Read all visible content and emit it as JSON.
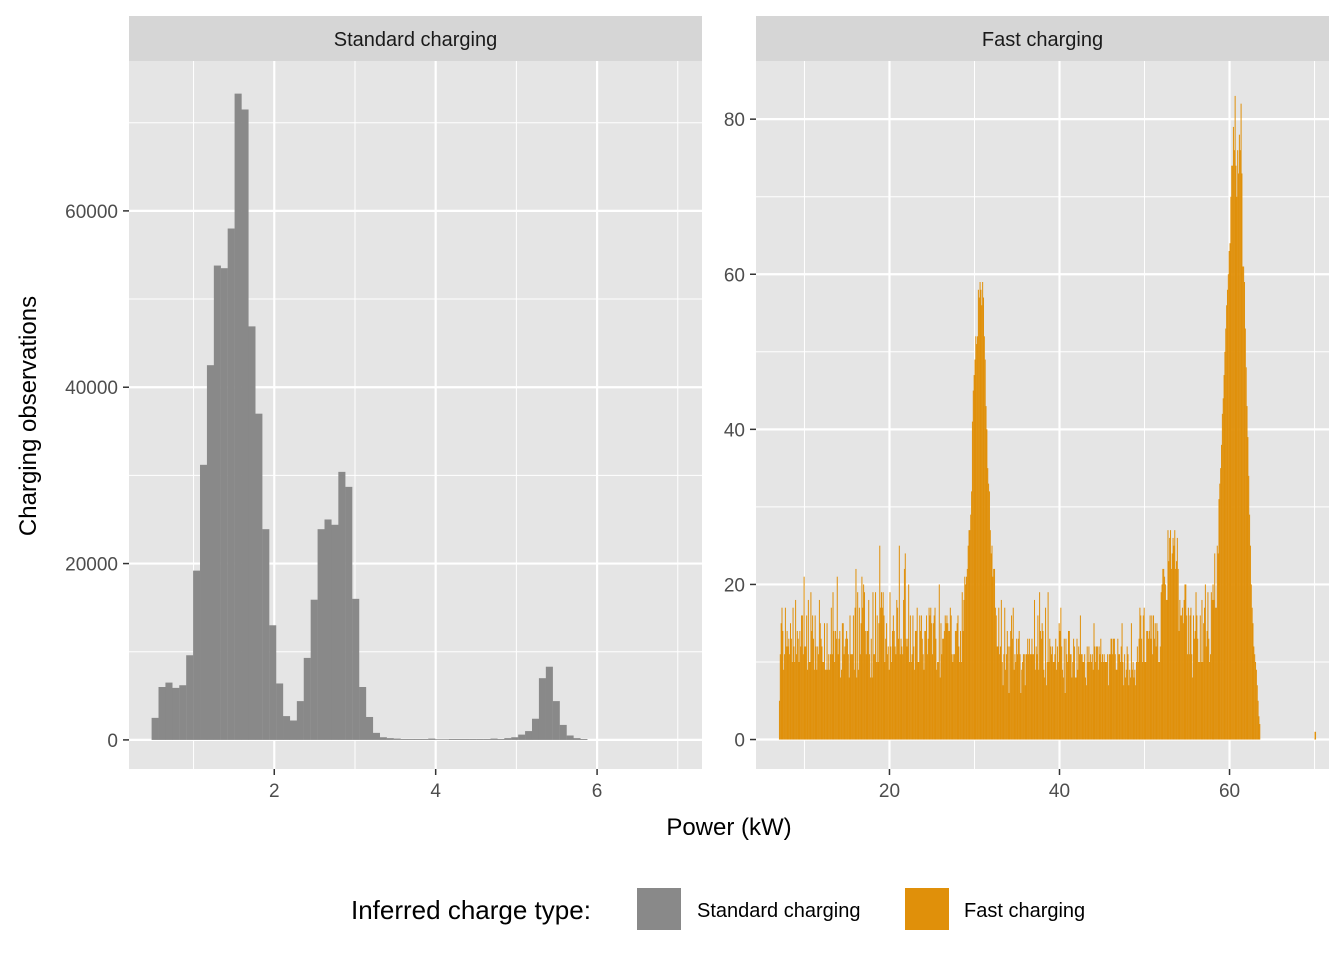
{
  "colors": {
    "standard": "#898989",
    "fast": "#e0900a",
    "panel_bg": "#e5e5e5",
    "strip_bg": "#d6d6d6",
    "grid": "#ffffff"
  },
  "chart_data": {
    "type": "bar",
    "xlabel": "Power (kW)",
    "ylabel": "Charging observations",
    "legend": {
      "title": "Inferred charge type:",
      "position": "bottom",
      "entries": [
        {
          "name": "Standard charging",
          "color": "#898989"
        },
        {
          "name": "Fast charging",
          "color": "#e0900a"
        }
      ]
    },
    "panels": [
      {
        "strip": "Standard charging",
        "xlim": [
          0.2,
          7.3
        ],
        "ylim": [
          -3300,
          77000
        ],
        "xticks": [
          2,
          4,
          6
        ],
        "yticks": [
          0,
          20000,
          40000,
          60000
        ],
        "bin_start": 0.48,
        "bin_width": 0.0857,
        "values": [
          2500,
          6000,
          6500,
          5900,
          6200,
          9600,
          19200,
          31200,
          42500,
          53800,
          53500,
          58000,
          73300,
          71500,
          46900,
          37000,
          23900,
          13000,
          6400,
          2700,
          2200,
          4400,
          9300,
          15900,
          23900,
          25000,
          24400,
          30400,
          28700,
          16000,
          6000,
          2600,
          800,
          300,
          200,
          150,
          100,
          100,
          100,
          100,
          150,
          80,
          80,
          100,
          100,
          100,
          100,
          100,
          100,
          150,
          100,
          200,
          300,
          600,
          1000,
          2400,
          7000,
          8300,
          4400,
          1700,
          500,
          200,
          100
        ]
      },
      {
        "strip": "Fast charging",
        "xlim": [
          4.3,
          71.7
        ],
        "ylim": [
          -3.8,
          87.5
        ],
        "xticks": [
          20,
          40,
          60
        ],
        "yticks": [
          0,
          20,
          40,
          60,
          80
        ],
        "bin_start": 7,
        "bin_width": 0.1,
        "values": [
          5,
          11,
          15,
          17,
          14,
          9,
          11,
          17,
          12,
          14,
          12,
          13,
          11,
          15,
          13,
          10,
          17,
          12,
          10,
          18,
          11,
          14,
          13,
          10,
          14,
          12,
          16,
          16,
          11,
          21,
          12,
          12,
          16,
          9,
          18,
          10,
          10,
          19,
          14,
          16,
          13,
          9,
          16,
          12,
          9,
          12,
          11,
          18,
          15,
          13,
          12,
          10,
          10,
          15,
          9,
          9,
          15,
          9,
          11,
          9,
          11,
          17,
          11,
          19,
          14,
          10,
          14,
          13,
          21,
          11,
          13,
          14,
          8,
          9,
          15,
          15,
          11,
          12,
          13,
          14,
          13,
          11,
          8,
          16,
          11,
          11,
          11,
          16,
          9,
          17,
          22,
          8,
          19,
          9,
          17,
          11,
          15,
          21,
          17,
          20,
          19,
          14,
          11,
          14,
          14,
          18,
          11,
          8,
          13,
          8,
          19,
          11,
          11,
          19,
          10,
          16,
          10,
          15,
          25,
          17,
          19,
          17,
          19,
          16,
          10,
          13,
          15,
          11,
          12,
          9,
          19,
          12,
          10,
          14,
          16,
          14,
          12,
          11,
          18,
          17,
          13,
          25,
          11,
          13,
          12,
          11,
          18,
          22,
          24,
          13,
          12,
          13,
          20,
          10,
          16,
          10,
          11,
          16,
          12,
          9,
          14,
          14,
          17,
          10,
          10,
          16,
          14,
          16,
          13,
          11,
          9,
          14,
          14,
          16,
          11,
          13,
          17,
          16,
          17,
          15,
          11,
          15,
          16,
          17,
          13,
          9,
          10,
          10,
          20,
          8,
          15,
          11,
          13,
          13,
          14,
          16,
          15,
          16,
          15,
          14,
          14,
          17,
          16,
          11,
          10,
          11,
          11,
          14,
          14,
          15,
          16,
          12,
          10,
          14,
          10,
          19,
          14,
          18,
          21,
          20,
          21,
          22,
          25,
          27,
          27,
          29,
          32,
          41,
          45,
          47,
          49,
          52,
          51,
          52,
          58,
          57,
          59,
          58,
          56,
          59,
          57,
          52,
          49,
          43,
          40,
          35,
          33,
          32,
          27,
          24,
          25,
          21,
          22,
          22,
          17,
          16,
          12,
          12,
          17,
          11,
          12,
          18,
          10,
          7,
          11,
          17,
          9,
          11,
          14,
          12,
          6,
          12,
          14,
          16,
          13,
          17,
          9,
          11,
          10,
          13,
          11,
          13,
          14,
          11,
          6,
          9,
          10,
          11,
          11,
          7,
          11,
          11,
          13,
          11,
          13,
          11,
          11,
          13,
          11,
          11,
          18,
          9,
          12,
          11,
          16,
          9,
          19,
          14,
          13,
          15,
          14,
          9,
          8,
          17,
          7,
          10,
          19,
          10,
          13,
          12,
          11,
          12,
          10,
          10,
          11,
          13,
          9,
          12,
          10,
          15,
          14,
          17,
          12,
          9,
          8,
          13,
          6,
          13,
          11,
          10,
          14,
          14,
          11,
          11,
          8,
          10,
          13,
          12,
          8,
          8,
          13,
          9,
          12,
          11,
          16,
          11,
          11,
          10,
          10,
          11,
          8,
          7,
          12,
          10,
          12,
          10,
          11,
          10,
          11,
          9,
          15,
          12,
          10,
          12,
          12,
          9,
          12,
          11,
          13,
          10,
          11,
          10,
          11,
          10,
          10,
          10,
          11,
          7,
          11,
          11,
          13,
          13,
          11,
          13,
          13,
          11,
          9,
          9,
          13,
          11,
          11,
          10,
          12,
          15,
          10,
          7,
          11,
          8,
          9,
          12,
          11,
          7,
          9,
          8,
          15,
          9,
          10,
          8,
          9,
          7,
          10,
          12,
          10,
          13,
          17,
          16,
          13,
          10,
          16,
          17,
          10,
          10,
          14,
          14,
          13,
          14,
          16,
          13,
          16,
          11,
          16,
          13,
          15,
          12,
          15,
          14,
          10,
          10,
          12,
          19,
          20,
          22,
          22,
          21,
          20,
          18,
          18,
          27,
          23,
          26,
          27,
          22,
          24,
          26,
          25,
          27,
          22,
          23,
          26,
          22,
          14,
          18,
          16,
          16,
          17,
          15,
          18,
          20,
          20,
          16,
          11,
          17,
          11,
          16,
          17,
          11,
          8,
          16,
          13,
          14,
          19,
          16,
          13,
          10,
          10,
          16,
          10,
          18,
          10,
          15,
          17,
          20,
          12,
          14,
          19,
          13,
          10,
          11,
          19,
          18,
          20,
          18,
          24,
          17,
          17,
          25,
          24,
          31,
          33,
          35,
          38,
          42,
          44,
          47,
          50,
          53,
          56,
          58,
          60,
          63,
          64,
          70,
          74,
          74,
          79,
          76,
          83,
          74,
          70,
          76,
          73,
          78,
          76,
          82,
          73,
          61,
          61,
          59,
          53,
          48,
          43,
          39,
          34,
          29,
          25,
          20,
          17,
          15,
          12,
          11,
          10,
          9,
          7,
          5,
          3,
          2
        ],
        "outliers": [
          {
            "x": 58,
            "y": 1
          },
          {
            "x": 70,
            "y": 1
          }
        ]
      }
    ]
  }
}
